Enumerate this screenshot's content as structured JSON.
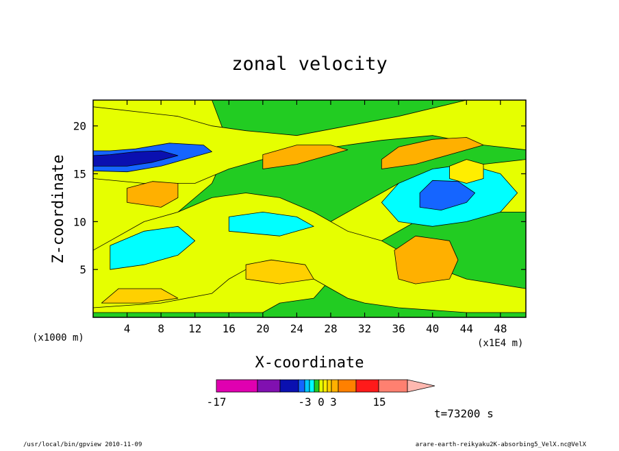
{
  "chart_data": {
    "type": "heatmap",
    "title": "zonal velocity",
    "xlabel": "X-coordinate",
    "ylabel": "Z-coordinate",
    "x_unit": "(x1E4 m)",
    "y_unit": "(x1000 m)",
    "xlim": [
      0,
      51
    ],
    "ylim": [
      0,
      22.7
    ],
    "xticks": [
      4,
      8,
      12,
      16,
      20,
      24,
      28,
      32,
      36,
      40,
      44,
      48
    ],
    "yticks": [
      5,
      10,
      15,
      20
    ],
    "colorbar": {
      "labels": [
        "-17",
        "-3",
        "0",
        "3",
        "15"
      ],
      "levels": [
        -17,
        -12,
        -8,
        -5,
        -3,
        -2,
        -1,
        0,
        1,
        2,
        3,
        5,
        8,
        15
      ],
      "colors": [
        "#e000b0",
        "#8010b0",
        "#0a10b0",
        "#1565ff",
        "#00c8ff",
        "#00ffff",
        "#22cc22",
        "#e6ff00",
        "#ffee00",
        "#ffd000",
        "#ffb000",
        "#ff8000",
        "#ff1a1a",
        "#ff8070"
      ],
      "extend_max_color": "#ffb8b0"
    },
    "regions": [
      {
        "level": 0.5,
        "points": [
          [
            0,
            0.5
          ],
          [
            20,
            0.5
          ],
          [
            22,
            1.5
          ],
          [
            26,
            2
          ],
          [
            28,
            4
          ],
          [
            30,
            6
          ],
          [
            34,
            8
          ],
          [
            38,
            10
          ],
          [
            44,
            11
          ],
          [
            51,
            11
          ],
          [
            51,
            0
          ],
          [
            0,
            0
          ]
        ],
        "color": "#22cc22"
      },
      {
        "level": -0.5,
        "points": [
          [
            14,
            5
          ],
          [
            22,
            6
          ],
          [
            26,
            9
          ],
          [
            30,
            11
          ],
          [
            36,
            14
          ],
          [
            46,
            16
          ],
          [
            51,
            16.5
          ],
          [
            51,
            22.7
          ],
          [
            14,
            22.7
          ],
          [
            16,
            18
          ],
          [
            14,
            14
          ],
          [
            10,
            11
          ],
          [
            12,
            8
          ]
        ],
        "color": "#22cc22"
      },
      {
        "level": 1.5,
        "points": [
          [
            0,
            14.5
          ],
          [
            6,
            14
          ],
          [
            12,
            14
          ],
          [
            16,
            15.5
          ],
          [
            22,
            17
          ],
          [
            30,
            18
          ],
          [
            34,
            18.5
          ],
          [
            40,
            19
          ],
          [
            46,
            18
          ],
          [
            51,
            17.5
          ],
          [
            51,
            22.7
          ],
          [
            44,
            22.7
          ],
          [
            36,
            21
          ],
          [
            30,
            20
          ],
          [
            24,
            19
          ],
          [
            18,
            19.5
          ],
          [
            14,
            20
          ],
          [
            10,
            21
          ],
          [
            0,
            22
          ]
        ],
        "color": "#e6ff00"
      },
      {
        "level": 1.5,
        "points": [
          [
            0,
            1
          ],
          [
            8,
            1.5
          ],
          [
            14,
            2.5
          ],
          [
            16,
            4
          ],
          [
            18,
            5
          ],
          [
            20,
            5.5
          ],
          [
            22,
            5
          ],
          [
            26,
            4
          ],
          [
            28,
            3
          ],
          [
            30,
            2
          ],
          [
            32,
            1.5
          ],
          [
            36,
            1
          ],
          [
            44,
            0.5
          ],
          [
            51,
            0.5
          ],
          [
            51,
            3
          ],
          [
            44,
            4
          ],
          [
            38,
            6
          ],
          [
            34,
            8
          ],
          [
            30,
            9
          ],
          [
            26,
            11
          ],
          [
            22,
            12.5
          ],
          [
            18,
            13
          ],
          [
            14,
            12.5
          ],
          [
            10,
            11
          ],
          [
            6,
            10
          ],
          [
            2,
            8
          ],
          [
            0,
            7
          ]
        ],
        "color": "#e6ff00"
      },
      {
        "level": -2.5,
        "points": [
          [
            2,
            5
          ],
          [
            6,
            5.5
          ],
          [
            10,
            6.5
          ],
          [
            12,
            8
          ],
          [
            10,
            9.5
          ],
          [
            6,
            9
          ],
          [
            2,
            7.5
          ]
        ],
        "color": "#00ffff"
      },
      {
        "level": -2.5,
        "points": [
          [
            16,
            9
          ],
          [
            22,
            8.5
          ],
          [
            26,
            9.5
          ],
          [
            24,
            10.5
          ],
          [
            20,
            11
          ],
          [
            16,
            10.5
          ]
        ],
        "color": "#00ffff"
      },
      {
        "level": -2.5,
        "points": [
          [
            36,
            10
          ],
          [
            40,
            9.5
          ],
          [
            44,
            10
          ],
          [
            48,
            11
          ],
          [
            50,
            13
          ],
          [
            48,
            15
          ],
          [
            44,
            16
          ],
          [
            40,
            15.5
          ],
          [
            36,
            14
          ],
          [
            34,
            12
          ]
        ],
        "color": "#00ffff"
      },
      {
        "level": -5.5,
        "points": [
          [
            38.5,
            11.5
          ],
          [
            41,
            11.2
          ],
          [
            44,
            12
          ],
          [
            45,
            13
          ],
          [
            43,
            14.2
          ],
          [
            40,
            14.3
          ],
          [
            38.5,
            13
          ]
        ],
        "color": "#1565ff"
      },
      {
        "level": -6.5,
        "points": [
          [
            0,
            15.3
          ],
          [
            4,
            15.2
          ],
          [
            8,
            15.8
          ],
          [
            12,
            16.8
          ],
          [
            14,
            17.3
          ],
          [
            13,
            18
          ],
          [
            9,
            18.2
          ],
          [
            5,
            17.6
          ],
          [
            2,
            17.4
          ],
          [
            0,
            17.4
          ]
        ],
        "color": "#1565ff"
      },
      {
        "level": -10,
        "points": [
          [
            0,
            15.8
          ],
          [
            4,
            15.8
          ],
          [
            7,
            16.2
          ],
          [
            10,
            16.9
          ],
          [
            8,
            17.4
          ],
          [
            5,
            17.3
          ],
          [
            2,
            17
          ],
          [
            0,
            16.9
          ]
        ],
        "color": "#0a10b0"
      },
      {
        "level": 4,
        "points": [
          [
            36,
            4
          ],
          [
            38,
            3.5
          ],
          [
            42,
            4
          ],
          [
            43,
            6
          ],
          [
            42,
            8
          ],
          [
            38,
            8.5
          ],
          [
            35.5,
            7
          ],
          [
            35.8,
            5
          ]
        ],
        "color": "#ffb000"
      },
      {
        "level": 4,
        "points": [
          [
            4,
            12
          ],
          [
            8,
            11.5
          ],
          [
            10,
            12.5
          ],
          [
            10,
            14
          ],
          [
            7,
            14.2
          ],
          [
            4,
            13.5
          ]
        ],
        "color": "#ffb000"
      },
      {
        "level": 3.5,
        "points": [
          [
            20,
            15.5
          ],
          [
            24,
            16
          ],
          [
            28,
            17
          ],
          [
            30,
            17.5
          ],
          [
            28,
            18
          ],
          [
            24,
            18
          ],
          [
            20,
            17
          ]
        ],
        "color": "#ffb000"
      },
      {
        "level": 3.5,
        "points": [
          [
            34,
            15.5
          ],
          [
            38,
            16
          ],
          [
            42,
            17
          ],
          [
            46,
            18
          ],
          [
            44,
            18.8
          ],
          [
            40,
            18.6
          ],
          [
            36,
            17.8
          ],
          [
            34,
            16.5
          ]
        ],
        "color": "#ffb000"
      },
      {
        "level": 2.5,
        "points": [
          [
            18,
            4
          ],
          [
            22,
            3.5
          ],
          [
            26,
            4
          ],
          [
            25,
            5.5
          ],
          [
            21,
            6
          ],
          [
            18,
            5.5
          ]
        ],
        "color": "#ffd000"
      },
      {
        "level": 2.5,
        "points": [
          [
            1,
            1.5
          ],
          [
            6,
            1.5
          ],
          [
            10,
            2
          ],
          [
            8,
            3
          ],
          [
            3,
            3
          ]
        ],
        "color": "#ffd000"
      },
      {
        "level": 1.5,
        "points": [
          [
            42,
            14.5
          ],
          [
            44,
            14
          ],
          [
            46,
            14.5
          ],
          [
            46,
            16
          ],
          [
            44,
            16.5
          ],
          [
            42,
            15.8
          ]
        ],
        "color": "#ffee00"
      }
    ]
  },
  "footer": {
    "time_label": "t=73200 s",
    "program": "/usr/local/bin/gpview  2010-11-09",
    "source": "arare-earth-reikyaku2K-absorbing5_VelX.nc@VelX"
  }
}
